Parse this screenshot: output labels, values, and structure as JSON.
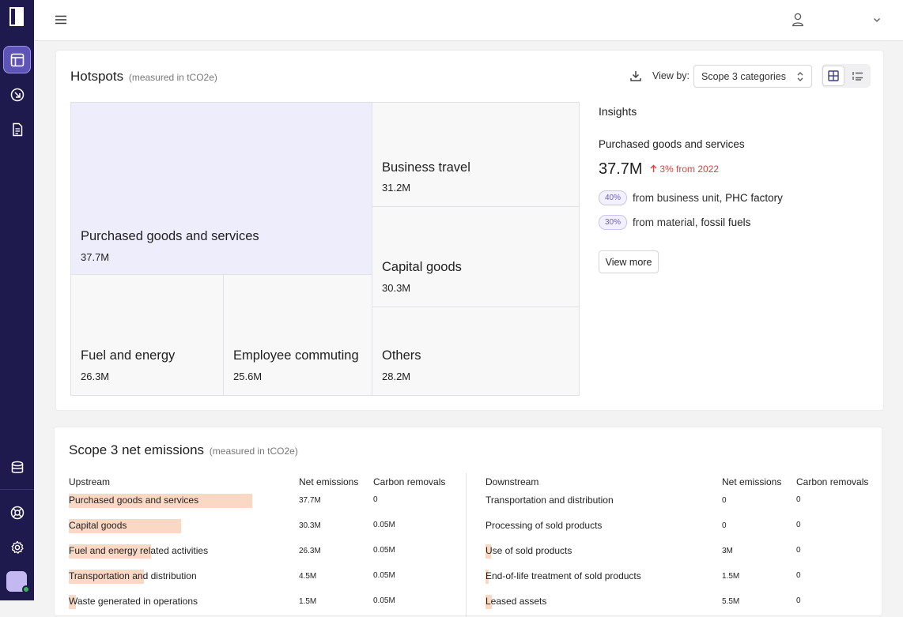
{
  "sidebar": {
    "items": [
      {
        "icon": "logo-icon"
      },
      {
        "icon": "layout-icon",
        "active": true
      },
      {
        "icon": "arrow-in-circle-icon"
      },
      {
        "icon": "document-icon"
      },
      {
        "icon": "database-icon"
      },
      {
        "icon": "help-lifebuoy-icon"
      },
      {
        "icon": "settings-gear-icon"
      }
    ]
  },
  "topbar": {
    "menu_icon": "hamburger-icon",
    "user_icon": "user-icon",
    "dropdown_icon": "chevron-down-icon"
  },
  "hotspots": {
    "title": "Hotspots",
    "unit": "(measured in tCO2e)",
    "view_by_label": "View by:",
    "view_by_value": "Scope 3 categories",
    "tiles": [
      {
        "name": "Purchased goods and services",
        "value": "37.7M"
      },
      {
        "name": "Business travel",
        "value": "31.2M"
      },
      {
        "name": "Capital goods",
        "value": "30.3M"
      },
      {
        "name": "Fuel and energy",
        "value": "26.3M"
      },
      {
        "name": "Employee commuting",
        "value": "25.6M"
      },
      {
        "name": "Others",
        "value": "28.2M"
      }
    ]
  },
  "insights": {
    "title": "Insights",
    "category": "Purchased goods and services",
    "value": "37.7M",
    "delta": "3% from 2022",
    "rows": [
      {
        "pct": "40%",
        "text": "from business unit,",
        "highlight": "PHC factory"
      },
      {
        "pct": "30%",
        "text": "from material,",
        "highlight": "fossil fuels"
      }
    ],
    "view_more": "View more"
  },
  "scope3": {
    "title": "Scope 3 net emissions",
    "unit": "(measured in tCO2e)",
    "upstream": {
      "headers": [
        "Upstream",
        "Net emissions",
        "Carbon removals"
      ],
      "rows": [
        {
          "label": "Purchased goods and services",
          "net": "37.7M",
          "removals": "0",
          "share": 1.0
        },
        {
          "label": "Capital goods",
          "net": "30.3M",
          "removals": "0.05M",
          "share": 0.61
        },
        {
          "label": "Fuel and energy related activities",
          "net": "26.3M",
          "removals": "0.05M",
          "share": 0.45
        },
        {
          "label": "Transportation and distribution",
          "net": "4.5M",
          "removals": "0.05M",
          "share": 0.41
        },
        {
          "label": "Waste generated in operations",
          "net": "1.5M",
          "removals": "0.05M",
          "share": 0.04
        }
      ]
    },
    "downstream": {
      "headers": [
        "Downstream",
        "Net emissions",
        "Carbon removals"
      ],
      "rows": [
        {
          "label": "Transportation and distribution",
          "net": "0",
          "removals": "0",
          "share": 0
        },
        {
          "label": "Processing of sold products",
          "net": "0",
          "removals": "0",
          "share": 0
        },
        {
          "label": "Use of sold products",
          "net": "3M",
          "removals": "0",
          "share": 0.07
        },
        {
          "label": "End-of-life treatment of sold products",
          "net": "1.5M",
          "removals": "0",
          "share": 0.04
        },
        {
          "label": "Leased assets",
          "net": "5.5M",
          "removals": "0",
          "share": 0.08
        }
      ]
    }
  }
}
